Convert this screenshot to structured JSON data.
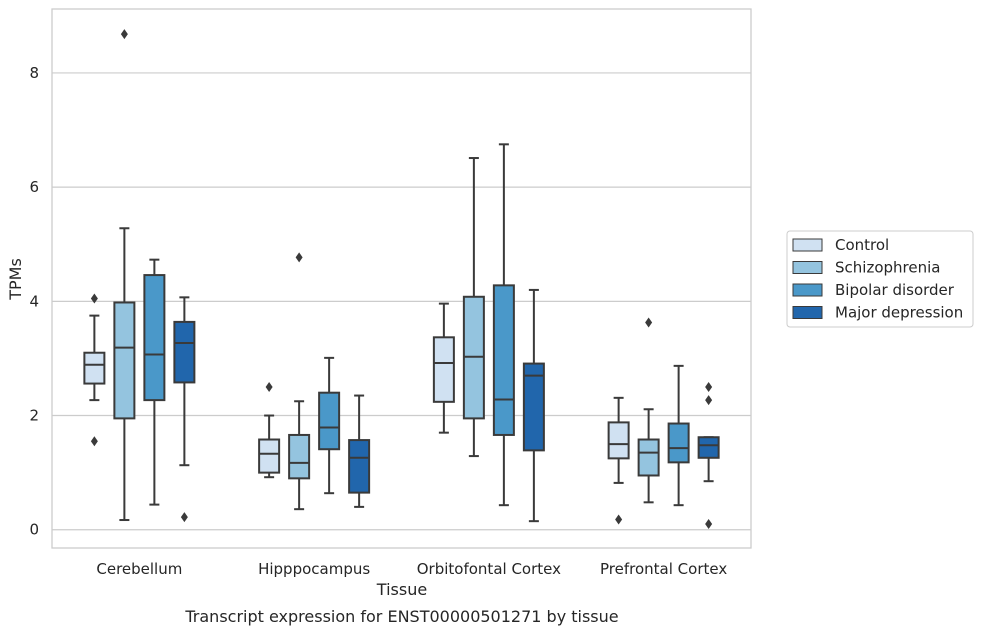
{
  "chart_data": {
    "type": "box",
    "caption": "Transcript expression for ENST00000501271 by tissue",
    "xlabel": "Tissue",
    "ylabel": "TPMs",
    "ylim": [
      -0.32,
      9.12
    ],
    "yticks": [
      0,
      2,
      4,
      6,
      8
    ],
    "ytick_labels": [
      "0",
      "2",
      "4",
      "6",
      "8"
    ],
    "grid": "horizontal",
    "legend_position": "right-center",
    "categories": [
      "Cerebellum",
      "Hipppocampus",
      "Orbitofontal Cortex",
      "Prefrontal Cortex"
    ],
    "series": [
      {
        "name": "Control",
        "color": "#d0e1f2",
        "boxes": [
          {
            "whisker_low": 2.27,
            "q1": 2.56,
            "median": 2.89,
            "q3": 3.1,
            "whisker_high": 3.75,
            "outliers": [
              4.05,
              1.55
            ]
          },
          {
            "whisker_low": 0.92,
            "q1": 1.0,
            "median": 1.33,
            "q3": 1.58,
            "whisker_high": 2.0,
            "outliers": [
              2.5
            ]
          },
          {
            "whisker_low": 1.7,
            "q1": 2.24,
            "median": 2.92,
            "q3": 3.37,
            "whisker_high": 3.96,
            "outliers": []
          },
          {
            "whisker_low": 0.82,
            "q1": 1.25,
            "median": 1.5,
            "q3": 1.88,
            "whisker_high": 2.31,
            "outliers": [
              0.18
            ]
          }
        ]
      },
      {
        "name": "Schizophrenia",
        "color": "#94c4df",
        "boxes": [
          {
            "whisker_low": 0.17,
            "q1": 1.95,
            "median": 3.19,
            "q3": 3.98,
            "whisker_high": 5.28,
            "outliers": [
              8.68
            ]
          },
          {
            "whisker_low": 0.36,
            "q1": 0.9,
            "median": 1.17,
            "q3": 1.66,
            "whisker_high": 2.25,
            "outliers": [
              4.77
            ]
          },
          {
            "whisker_low": 1.29,
            "q1": 1.95,
            "median": 3.03,
            "q3": 4.08,
            "whisker_high": 6.51,
            "outliers": []
          },
          {
            "whisker_low": 0.48,
            "q1": 0.95,
            "median": 1.35,
            "q3": 1.58,
            "whisker_high": 2.11,
            "outliers": [
              3.63
            ]
          }
        ]
      },
      {
        "name": "Bipolar disorder",
        "color": "#4a98c9",
        "boxes": [
          {
            "whisker_low": 0.44,
            "q1": 2.27,
            "median": 3.07,
            "q3": 4.46,
            "whisker_high": 4.73,
            "outliers": []
          },
          {
            "whisker_low": 0.64,
            "q1": 1.41,
            "median": 1.79,
            "q3": 2.4,
            "whisker_high": 3.01,
            "outliers": []
          },
          {
            "whisker_low": 0.43,
            "q1": 1.66,
            "median": 2.28,
            "q3": 4.28,
            "whisker_high": 6.75,
            "outliers": []
          },
          {
            "whisker_low": 0.43,
            "q1": 1.18,
            "median": 1.43,
            "q3": 1.86,
            "whisker_high": 2.87,
            "outliers": []
          }
        ]
      },
      {
        "name": "Major depression",
        "color": "#2166ac",
        "boxes": [
          {
            "whisker_low": 1.13,
            "q1": 2.58,
            "median": 3.27,
            "q3": 3.64,
            "whisker_high": 4.07,
            "outliers": [
              0.22
            ]
          },
          {
            "whisker_low": 0.4,
            "q1": 0.65,
            "median": 1.26,
            "q3": 1.57,
            "whisker_high": 2.35,
            "outliers": []
          },
          {
            "whisker_low": 0.15,
            "q1": 1.39,
            "median": 2.7,
            "q3": 2.91,
            "whisker_high": 4.2,
            "outliers": []
          },
          {
            "whisker_low": 0.85,
            "q1": 1.26,
            "median": 1.48,
            "q3": 1.62,
            "whisker_high": 1.62,
            "outliers": [
              2.5,
              2.27,
              0.1
            ]
          }
        ]
      }
    ]
  },
  "colors": {
    "frame": "#cccccc",
    "grid": "#cccccc",
    "line": "#3a3a3a",
    "background": "#ffffff"
  }
}
